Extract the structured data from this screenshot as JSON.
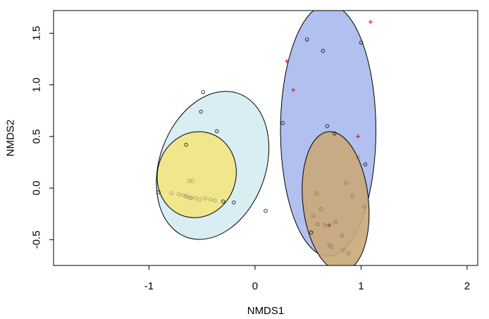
{
  "chart_data": {
    "type": "scatter",
    "title": "",
    "xlabel": "NMDS1",
    "ylabel": "NMDS2",
    "xlim": [
      -1.9,
      2.1
    ],
    "ylim": [
      -0.75,
      1.72
    ],
    "xticks": [
      -1,
      0,
      1,
      2
    ],
    "yticks": [
      -0.5,
      0.0,
      0.5,
      1.0,
      1.5
    ],
    "xtick_labels": [
      "-1",
      "0",
      "1",
      "2"
    ],
    "ytick_labels": [
      "-0.5",
      "0.0",
      "0.5",
      "1.0",
      "1.5"
    ],
    "grid": false,
    "legend": "none",
    "ellipses": [
      {
        "cx": -0.4,
        "cy": 0.22,
        "rx": 0.5,
        "ry": 0.74,
        "angle": 20,
        "fill": "#d9eef2",
        "stroke": "#000000"
      },
      {
        "cx": -0.55,
        "cy": 0.13,
        "rx": 0.37,
        "ry": 0.42,
        "angle": 17,
        "fill": "#f0e68c",
        "stroke": "#000000"
      },
      {
        "cx": 0.69,
        "cy": 0.56,
        "rx": 0.45,
        "ry": 1.22,
        "angle": 0,
        "fill": "#b2c0ef",
        "stroke": "#000000"
      },
      {
        "cx": 0.76,
        "cy": -0.13,
        "rx": 0.31,
        "ry": 0.68,
        "angle": -6,
        "fill": "#c8a878",
        "stroke": "#000000",
        "opacity": 0.9
      }
    ],
    "series": [
      {
        "marker": "circle",
        "color": "#000000",
        "points": [
          [
            -0.49,
            0.93
          ],
          [
            -0.51,
            0.74
          ],
          [
            -0.36,
            0.55
          ],
          [
            -0.65,
            0.42
          ],
          [
            -0.91,
            -0.04
          ],
          [
            -0.3,
            -0.13
          ],
          [
            -0.2,
            -0.14
          ],
          [
            0.1,
            -0.22
          ]
        ]
      },
      {
        "marker": "circle",
        "color": "#a09060",
        "points": [
          [
            -0.62,
            0.07
          ],
          [
            -0.59,
            0.07
          ],
          [
            -0.79,
            -0.05
          ],
          [
            -0.72,
            -0.06
          ],
          [
            -0.68,
            -0.07
          ],
          [
            -0.64,
            -0.08
          ],
          [
            -0.6,
            -0.09
          ],
          [
            -0.56,
            -0.1
          ],
          [
            -0.52,
            -0.11
          ],
          [
            -0.47,
            -0.1
          ],
          [
            -0.42,
            -0.11
          ],
          [
            -0.38,
            -0.12
          ],
          [
            -0.65,
            -0.08
          ],
          [
            -0.61,
            -0.1
          ]
        ]
      },
      {
        "marker": "circle",
        "color": "#000000",
        "points": [
          [
            0.49,
            1.44
          ],
          [
            0.64,
            1.33
          ],
          [
            1.0,
            1.41
          ],
          [
            0.26,
            0.63
          ],
          [
            0.68,
            0.6
          ],
          [
            0.75,
            0.53
          ],
          [
            1.04,
            0.23
          ],
          [
            0.53,
            -0.43
          ]
        ]
      },
      {
        "marker": "circle",
        "color": "#8a7040",
        "points": [
          [
            0.97,
            0.3
          ],
          [
            0.58,
            -0.05
          ],
          [
            0.62,
            -0.2
          ],
          [
            0.55,
            -0.27
          ],
          [
            0.59,
            -0.35
          ],
          [
            0.66,
            -0.36
          ],
          [
            0.7,
            -0.55
          ],
          [
            0.72,
            -0.57
          ],
          [
            0.82,
            -0.46
          ],
          [
            0.86,
            0.05
          ],
          [
            0.92,
            -0.08
          ],
          [
            1.03,
            -0.18
          ],
          [
            0.76,
            -0.33
          ],
          [
            0.83,
            -0.6
          ],
          [
            0.88,
            -0.63
          ]
        ]
      },
      {
        "marker": "plus",
        "color": "#e00000",
        "points": [
          [
            0.3,
            1.23
          ],
          [
            0.36,
            0.95
          ],
          [
            1.09,
            1.61
          ],
          [
            0.97,
            0.5
          ],
          [
            0.7,
            -0.36
          ]
        ]
      }
    ]
  }
}
